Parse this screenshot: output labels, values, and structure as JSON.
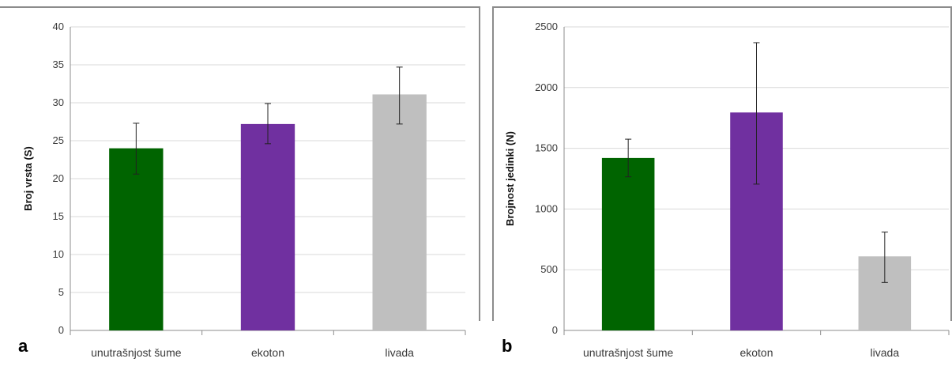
{
  "chart_data": [
    {
      "type": "bar",
      "panel_label": "a",
      "categories": [
        "unutrašnjost šume",
        "ekoton",
        "livada"
      ],
      "values": [
        24,
        27.2,
        31.1
      ],
      "error_low": [
        20.6,
        24.6,
        27.2
      ],
      "error_high": [
        27.3,
        29.9,
        34.7
      ],
      "colors": [
        "#006400",
        "#7030a0",
        "#bfbfbf"
      ],
      "title": "",
      "xlabel": "",
      "ylabel": "Broj vrsta (S)",
      "ylim": [
        0,
        40
      ],
      "yticks": [
        0,
        5,
        10,
        15,
        20,
        25,
        30,
        35,
        40
      ],
      "grid": true,
      "legend": "none"
    },
    {
      "type": "bar",
      "panel_label": "b",
      "categories": [
        "unutrašnjost šume",
        "ekoton",
        "livada"
      ],
      "values": [
        1420,
        1795,
        610
      ],
      "error_low": [
        1265,
        1205,
        395
      ],
      "error_high": [
        1575,
        2370,
        810
      ],
      "colors": [
        "#006400",
        "#7030a0",
        "#bfbfbf"
      ],
      "title": "",
      "xlabel": "",
      "ylabel": "Brojnost jedinki (N)",
      "ylim": [
        0,
        2500
      ],
      "yticks": [
        0,
        500,
        1000,
        1500,
        2000,
        2500
      ],
      "grid": true,
      "legend": "none"
    }
  ]
}
